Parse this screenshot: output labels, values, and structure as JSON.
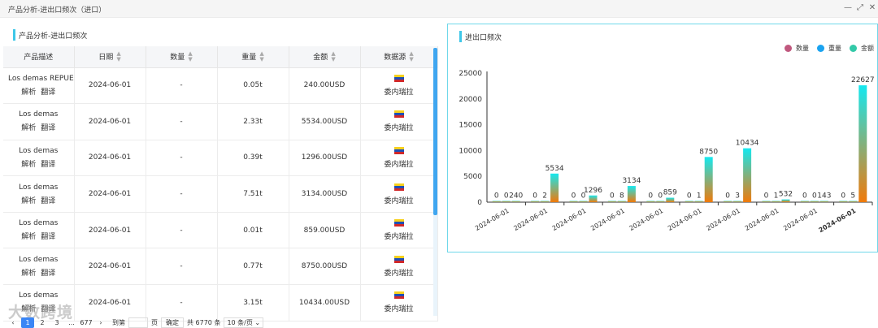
{
  "window": {
    "title": "产品分析-进出口频次（进口）",
    "controls": [
      "—",
      "⤢",
      "✕"
    ]
  },
  "left": {
    "header": "产品分析-进出口频次",
    "columns": [
      "产品描述",
      "日期",
      "数量",
      "重量",
      "金额",
      "数据源"
    ],
    "link_parse": "解析",
    "link_translate": "翻译",
    "rows": [
      {
        "desc": "Los demas REPUESTOS",
        "date": "2024-06-01",
        "qty": "-",
        "weight": "0.05t",
        "amount": "240.00USD",
        "source": "委内瑞拉"
      },
      {
        "desc": "Los demas",
        "date": "2024-06-01",
        "qty": "-",
        "weight": "2.33t",
        "amount": "5534.00USD",
        "source": "委内瑞拉"
      },
      {
        "desc": "Los demas",
        "date": "2024-06-01",
        "qty": "-",
        "weight": "0.39t",
        "amount": "1296.00USD",
        "source": "委内瑞拉"
      },
      {
        "desc": "Los demas",
        "date": "2024-06-01",
        "qty": "-",
        "weight": "7.51t",
        "amount": "3134.00USD",
        "source": "委内瑞拉"
      },
      {
        "desc": "Los demas",
        "date": "2024-06-01",
        "qty": "-",
        "weight": "0.01t",
        "amount": "859.00USD",
        "source": "委内瑞拉"
      },
      {
        "desc": "Los demas",
        "date": "2024-06-01",
        "qty": "-",
        "weight": "0.77t",
        "amount": "8750.00USD",
        "source": "委内瑞拉"
      },
      {
        "desc": "Los demas",
        "date": "2024-06-01",
        "qty": "-",
        "weight": "3.15t",
        "amount": "10434.00USD",
        "source": "委内瑞拉"
      }
    ],
    "pager": {
      "prev": "‹",
      "pages": [
        "1",
        "2",
        "3",
        "...",
        "677"
      ],
      "next": "›",
      "goto_label": "到第",
      "page_unit": "页",
      "confirm": "确定",
      "total": "共 6770 条",
      "page_size": "10 条/页"
    },
    "watermark": "大数跨境"
  },
  "right": {
    "header": "进出口频次",
    "legend": [
      {
        "name": "数量",
        "color": "#c0587e"
      },
      {
        "name": "重量",
        "color": "#1aa3f0"
      },
      {
        "name": "金额",
        "color": "#33c9a8"
      }
    ]
  },
  "chart_data": {
    "type": "bar",
    "categories": [
      "2024-06-01",
      "2024-06-01",
      "2024-06-01",
      "2024-06-01",
      "2024-06-01",
      "2024-06-01",
      "2024-06-01",
      "2024-06-01",
      "2024-06-01",
      "2024-06-01"
    ],
    "series": [
      {
        "name": "数量",
        "values": [
          0,
          0,
          0,
          0,
          0,
          0,
          0,
          0,
          0,
          0
        ]
      },
      {
        "name": "重量",
        "values": [
          0,
          2,
          0,
          8,
          0,
          1,
          3,
          1,
          0,
          5
        ]
      },
      {
        "name": "金额",
        "values": [
          240,
          5534,
          1296,
          3134,
          859,
          8750,
          10434,
          532,
          143,
          22627
        ]
      }
    ],
    "ylim": [
      0,
      25000
    ],
    "yticks": [
      0,
      5000,
      10000,
      15000,
      20000,
      25000
    ],
    "grid": false,
    "legend_position": "top-right",
    "colors": {
      "bar_top": "#14e8f0",
      "bar_bottom": "#f07a0a",
      "axis": "#333333"
    }
  }
}
